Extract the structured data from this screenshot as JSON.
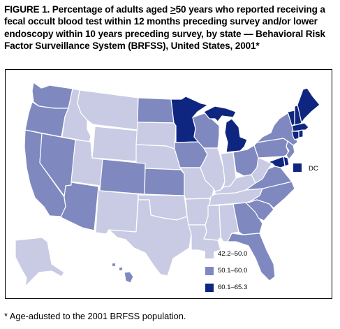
{
  "title_pre": "FIGURE 1. Percentage of adults aged ",
  "title_ge": ">",
  "title_post": "50 years who reported receiving a fecal occult blood test within 12 months preceding survey and/or lower endoscopy within 10 years preceding survey, by state — Behavioral Risk Factor Surveillance System (BRFSS), United States, 2001*",
  "footnote": "* Age-adusted to the 2001 BRFSS population.",
  "dc_label": "DC",
  "colors": {
    "low": "#c8cbe3",
    "mid": "#7f88bf",
    "high": "#0f2680",
    "border": "#ffffff",
    "frame": "#000000"
  },
  "legend": [
    {
      "label": "42.2–50.0",
      "color": "#c8cbe3"
    },
    {
      "label": "50.1–60.0",
      "color": "#7f88bf"
    },
    {
      "label": "60.1–65.3",
      "color": "#0f2680"
    }
  ],
  "map_data": {
    "type": "choropleth",
    "states": [
      {
        "state": "WA",
        "cls": "mid"
      },
      {
        "state": "OR",
        "cls": "mid"
      },
      {
        "state": "CA",
        "cls": "mid"
      },
      {
        "state": "NV",
        "cls": "mid"
      },
      {
        "state": "ID",
        "cls": "low"
      },
      {
        "state": "MT",
        "cls": "low"
      },
      {
        "state": "WY",
        "cls": "low"
      },
      {
        "state": "UT",
        "cls": "low"
      },
      {
        "state": "AZ",
        "cls": "mid"
      },
      {
        "state": "CO",
        "cls": "mid"
      },
      {
        "state": "NM",
        "cls": "low"
      },
      {
        "state": "ND",
        "cls": "mid"
      },
      {
        "state": "SD",
        "cls": "low"
      },
      {
        "state": "NE",
        "cls": "low"
      },
      {
        "state": "KS",
        "cls": "mid"
      },
      {
        "state": "OK",
        "cls": "low"
      },
      {
        "state": "TX",
        "cls": "low"
      },
      {
        "state": "MN",
        "cls": "high"
      },
      {
        "state": "IA",
        "cls": "mid"
      },
      {
        "state": "MO",
        "cls": "low"
      },
      {
        "state": "AR",
        "cls": "low"
      },
      {
        "state": "LA",
        "cls": "low"
      },
      {
        "state": "WI",
        "cls": "mid"
      },
      {
        "state": "IL",
        "cls": "low"
      },
      {
        "state": "MI",
        "cls": "high"
      },
      {
        "state": "IN",
        "cls": "low"
      },
      {
        "state": "OH",
        "cls": "mid"
      },
      {
        "state": "KY",
        "cls": "low"
      },
      {
        "state": "TN",
        "cls": "low"
      },
      {
        "state": "MS",
        "cls": "low"
      },
      {
        "state": "AL",
        "cls": "low"
      },
      {
        "state": "GA",
        "cls": "mid"
      },
      {
        "state": "FL",
        "cls": "mid"
      },
      {
        "state": "SC",
        "cls": "mid"
      },
      {
        "state": "NC",
        "cls": "mid"
      },
      {
        "state": "VA",
        "cls": "mid"
      },
      {
        "state": "WV",
        "cls": "low"
      },
      {
        "state": "PA",
        "cls": "mid"
      },
      {
        "state": "NY",
        "cls": "mid"
      },
      {
        "state": "VT",
        "cls": "high"
      },
      {
        "state": "NH",
        "cls": "high"
      },
      {
        "state": "ME",
        "cls": "high"
      },
      {
        "state": "MA",
        "cls": "high"
      },
      {
        "state": "CT",
        "cls": "high"
      },
      {
        "state": "RI",
        "cls": "high"
      },
      {
        "state": "NJ",
        "cls": "mid"
      },
      {
        "state": "DE",
        "cls": "high"
      },
      {
        "state": "MD",
        "cls": "high"
      },
      {
        "state": "DC",
        "cls": "high"
      },
      {
        "state": "AK",
        "cls": "low"
      },
      {
        "state": "HI",
        "cls": "mid"
      }
    ]
  }
}
